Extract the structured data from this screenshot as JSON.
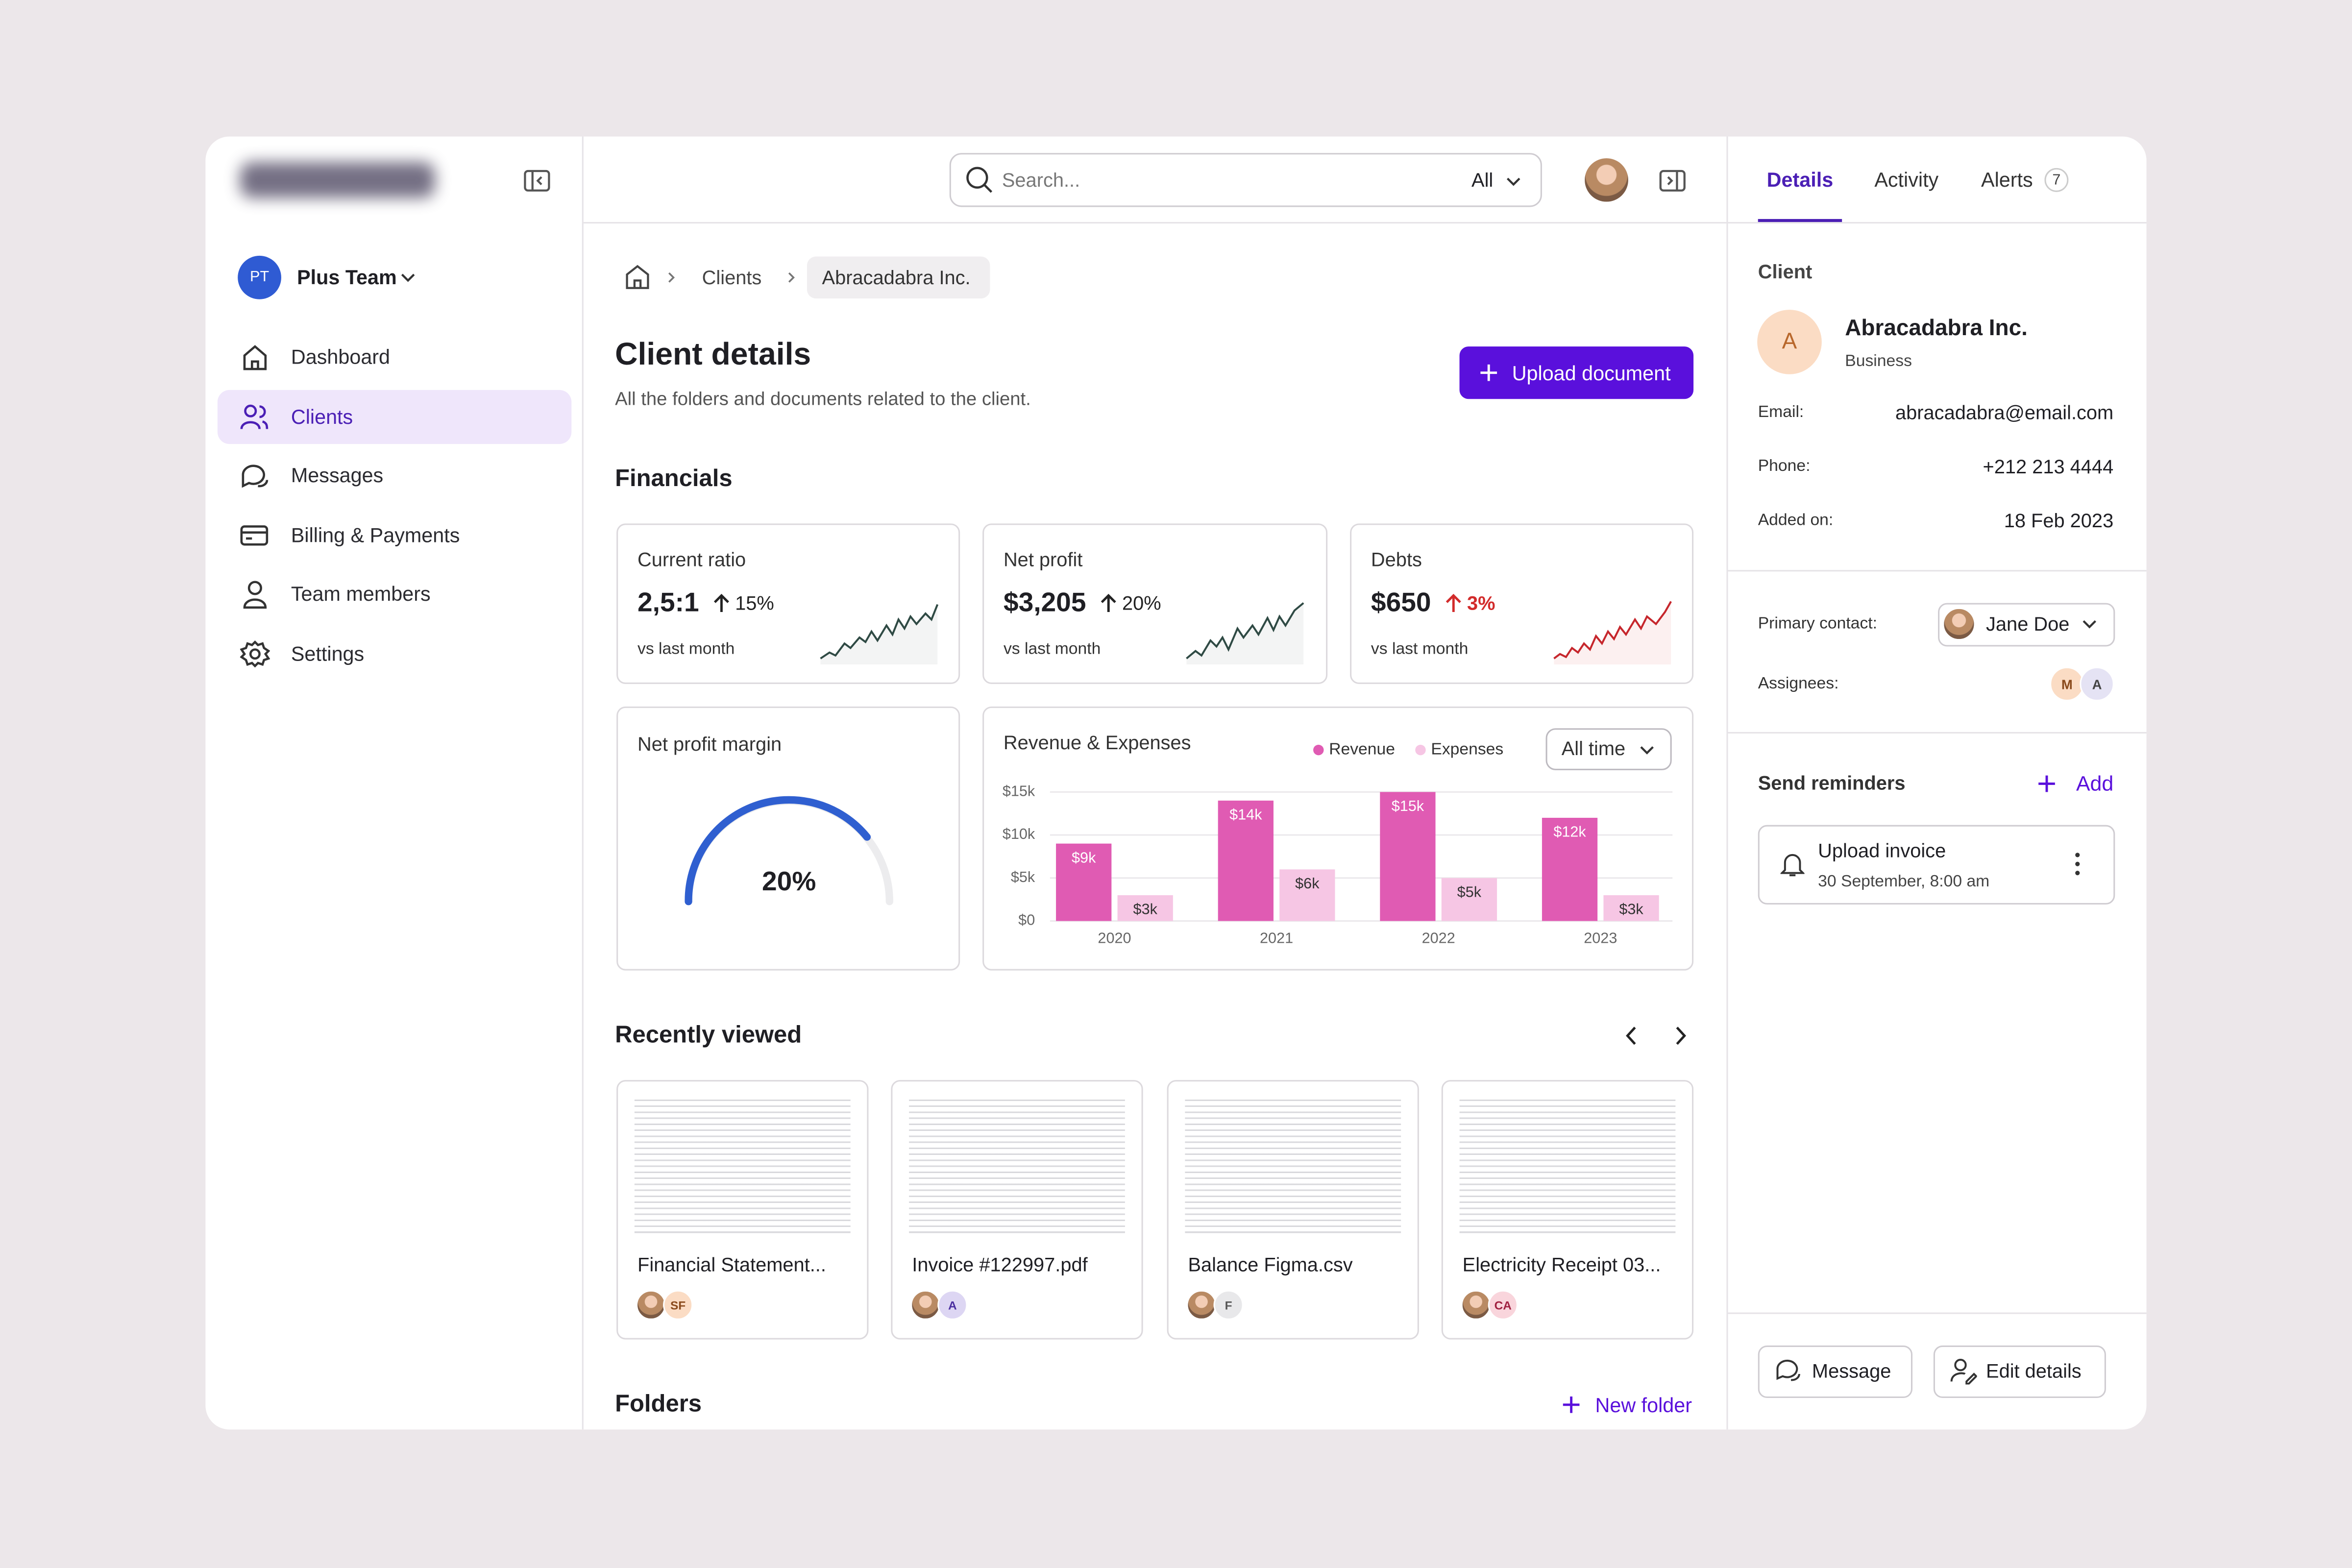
{
  "sidebar": {
    "team": {
      "initials": "PT",
      "name": "Plus Team"
    },
    "nav": [
      "Dashboard",
      "Clients",
      "Messages",
      "Billing & Payments",
      "Team members",
      "Settings"
    ]
  },
  "search": {
    "placeholder": "Search...",
    "filter": "All"
  },
  "breadcrumb": [
    "Clients",
    "Abracadabra Inc."
  ],
  "header": {
    "title": "Client details",
    "subtitle": "All the folders and documents related to the client.",
    "button": "Upload document"
  },
  "financials": {
    "title": "Financials",
    "cards": [
      {
        "label": "Current ratio",
        "value": "2,5:1",
        "change": "15%",
        "note": "vs last month"
      },
      {
        "label": "Net profit",
        "value": "$3,205",
        "change": "20%",
        "note": "vs last month"
      },
      {
        "label": "Debts",
        "value": "$650",
        "change": "3%",
        "note": "vs last month"
      }
    ]
  },
  "net_profit_margin": {
    "title": "Net profit margin",
    "value": "20%"
  },
  "chart_data": {
    "type": "bar",
    "title": "Revenue & Expenses",
    "filter": "All time",
    "categories": [
      "2020",
      "2021",
      "2022",
      "2023"
    ],
    "series": [
      {
        "name": "Revenue",
        "color": "#e05bb3",
        "values": [
          9,
          14,
          15,
          12
        ],
        "value_labels": [
          "$9k",
          "$14k",
          "$15k",
          "$12k"
        ]
      },
      {
        "name": "Expenses",
        "color": "#f6c6e4",
        "values": [
          3,
          6,
          5,
          3
        ],
        "value_labels": [
          "$3k",
          "$6k",
          "$5k",
          "$3k"
        ]
      }
    ],
    "ylim": [
      0,
      15
    ],
    "yticks": [
      {
        "value": 0,
        "label": "$0"
      },
      {
        "value": 5,
        "label": "$5k"
      },
      {
        "value": 10,
        "label": "$10k"
      },
      {
        "value": 15,
        "label": "$15k"
      }
    ],
    "grid": true
  },
  "recent": {
    "title": "Recently viewed",
    "files": [
      {
        "name": "Financial Statement...",
        "initials": "SF"
      },
      {
        "name": "Invoice #122997.pdf",
        "initials": "A"
      },
      {
        "name": "Balance Figma.csv",
        "initials": "F"
      },
      {
        "name": "Electricity Receipt 03...",
        "initials": "CA"
      }
    ]
  },
  "folders": {
    "title": "Folders",
    "action": "New folder"
  },
  "panel": {
    "tabs": [
      "Details",
      "Activity",
      "Alerts"
    ],
    "alerts_count": 7,
    "client": {
      "section": "Client",
      "initial": "A",
      "name": "Abracadabra Inc.",
      "type": "Business",
      "fields": [
        {
          "label": "Email:",
          "value": "abracadabra@email.com"
        },
        {
          "label": "Phone:",
          "value": "+212 213 4444"
        },
        {
          "label": "Added on:",
          "value": "18 Feb 2023"
        }
      ]
    },
    "primary_contact": {
      "label": "Primary contact:",
      "name": "Jane Doe"
    },
    "assignees": {
      "label": "Assignees:",
      "initials": [
        "M",
        "A"
      ]
    },
    "reminders": {
      "title": "Send reminders",
      "action": "Add",
      "items": [
        {
          "title": "Upload invoice",
          "time": "30 September, 8:00 am"
        }
      ]
    },
    "buttons": [
      "Message",
      "Edit details"
    ]
  }
}
